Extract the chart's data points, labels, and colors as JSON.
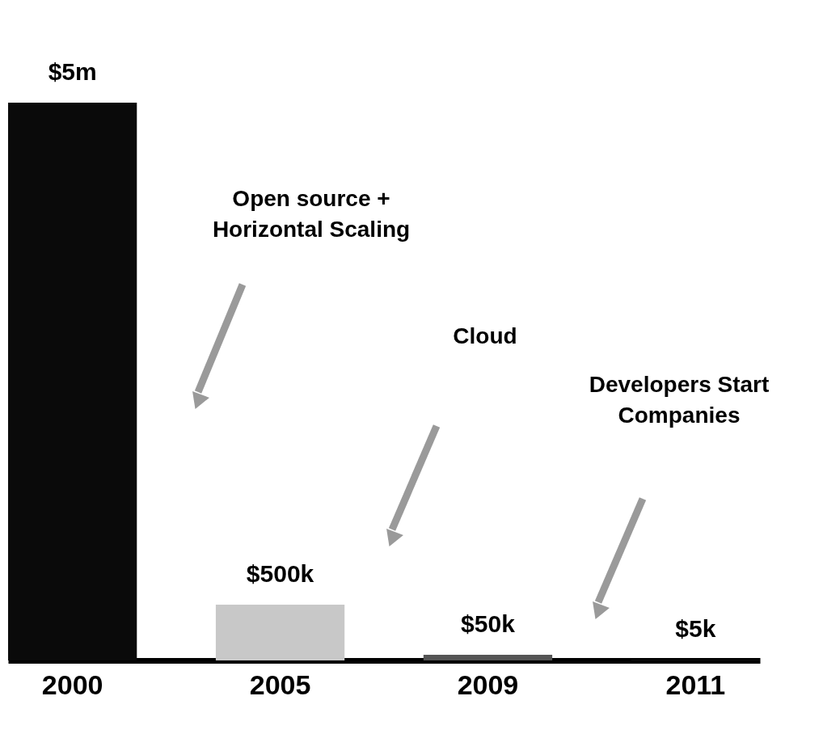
{
  "chart_data": {
    "type": "bar",
    "categories": [
      "2000",
      "2005",
      "2009",
      "2011"
    ],
    "values": [
      5000000,
      500000,
      50000,
      5000
    ],
    "value_labels": [
      "$5m",
      "$500k",
      "$50k",
      "$5k"
    ],
    "colors": [
      "#0a0a0a",
      "#c8c8c8",
      "#555555",
      "#1a1a1a"
    ],
    "annotations": [
      "Open source +\nHorizontal Scaling",
      "Cloud",
      "Developers Start\nCompanies"
    ],
    "grid": false
  }
}
